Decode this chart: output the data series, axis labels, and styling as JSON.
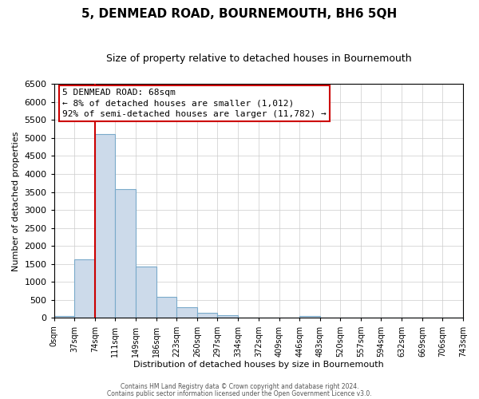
{
  "title": "5, DENMEAD ROAD, BOURNEMOUTH, BH6 5QH",
  "subtitle": "Size of property relative to detached houses in Bournemouth",
  "xlabel": "Distribution of detached houses by size in Bournemouth",
  "ylabel": "Number of detached properties",
  "bin_edges": [
    0,
    37,
    74,
    111,
    149,
    186,
    223,
    260,
    297,
    334,
    372,
    409,
    446,
    483,
    520,
    557,
    594,
    632,
    669,
    706,
    743
  ],
  "bin_counts": [
    60,
    1630,
    5100,
    3590,
    1430,
    590,
    300,
    150,
    80,
    0,
    0,
    0,
    50,
    0,
    0,
    0,
    0,
    0,
    0,
    0
  ],
  "bar_color": "#ccdaea",
  "bar_edge_color": "#7aaaca",
  "property_line_x": 74,
  "property_line_color": "#cc0000",
  "annotation_text_line1": "5 DENMEAD ROAD: 68sqm",
  "annotation_text_line2": "← 8% of detached houses are smaller (1,012)",
  "annotation_text_line3": "92% of semi-detached houses are larger (11,782) →",
  "annotation_box_facecolor": "#ffffff",
  "annotation_box_edgecolor": "#cc0000",
  "ylim": [
    0,
    6500
  ],
  "yticks": [
    0,
    500,
    1000,
    1500,
    2000,
    2500,
    3000,
    3500,
    4000,
    4500,
    5000,
    5500,
    6000,
    6500
  ],
  "tick_labels": [
    "0sqm",
    "37sqm",
    "74sqm",
    "111sqm",
    "149sqm",
    "186sqm",
    "223sqm",
    "260sqm",
    "297sqm",
    "334sqm",
    "372sqm",
    "409sqm",
    "446sqm",
    "483sqm",
    "520sqm",
    "557sqm",
    "594sqm",
    "632sqm",
    "669sqm",
    "706sqm",
    "743sqm"
  ],
  "footer_line1": "Contains HM Land Registry data © Crown copyright and database right 2024.",
  "footer_line2": "Contains public sector information licensed under the Open Government Licence v3.0.",
  "background_color": "#ffffff",
  "grid_color": "#cccccc",
  "title_fontsize": 11,
  "subtitle_fontsize": 9,
  "ylabel_fontsize": 8,
  "xlabel_fontsize": 8,
  "ytick_fontsize": 8,
  "xtick_fontsize": 7
}
